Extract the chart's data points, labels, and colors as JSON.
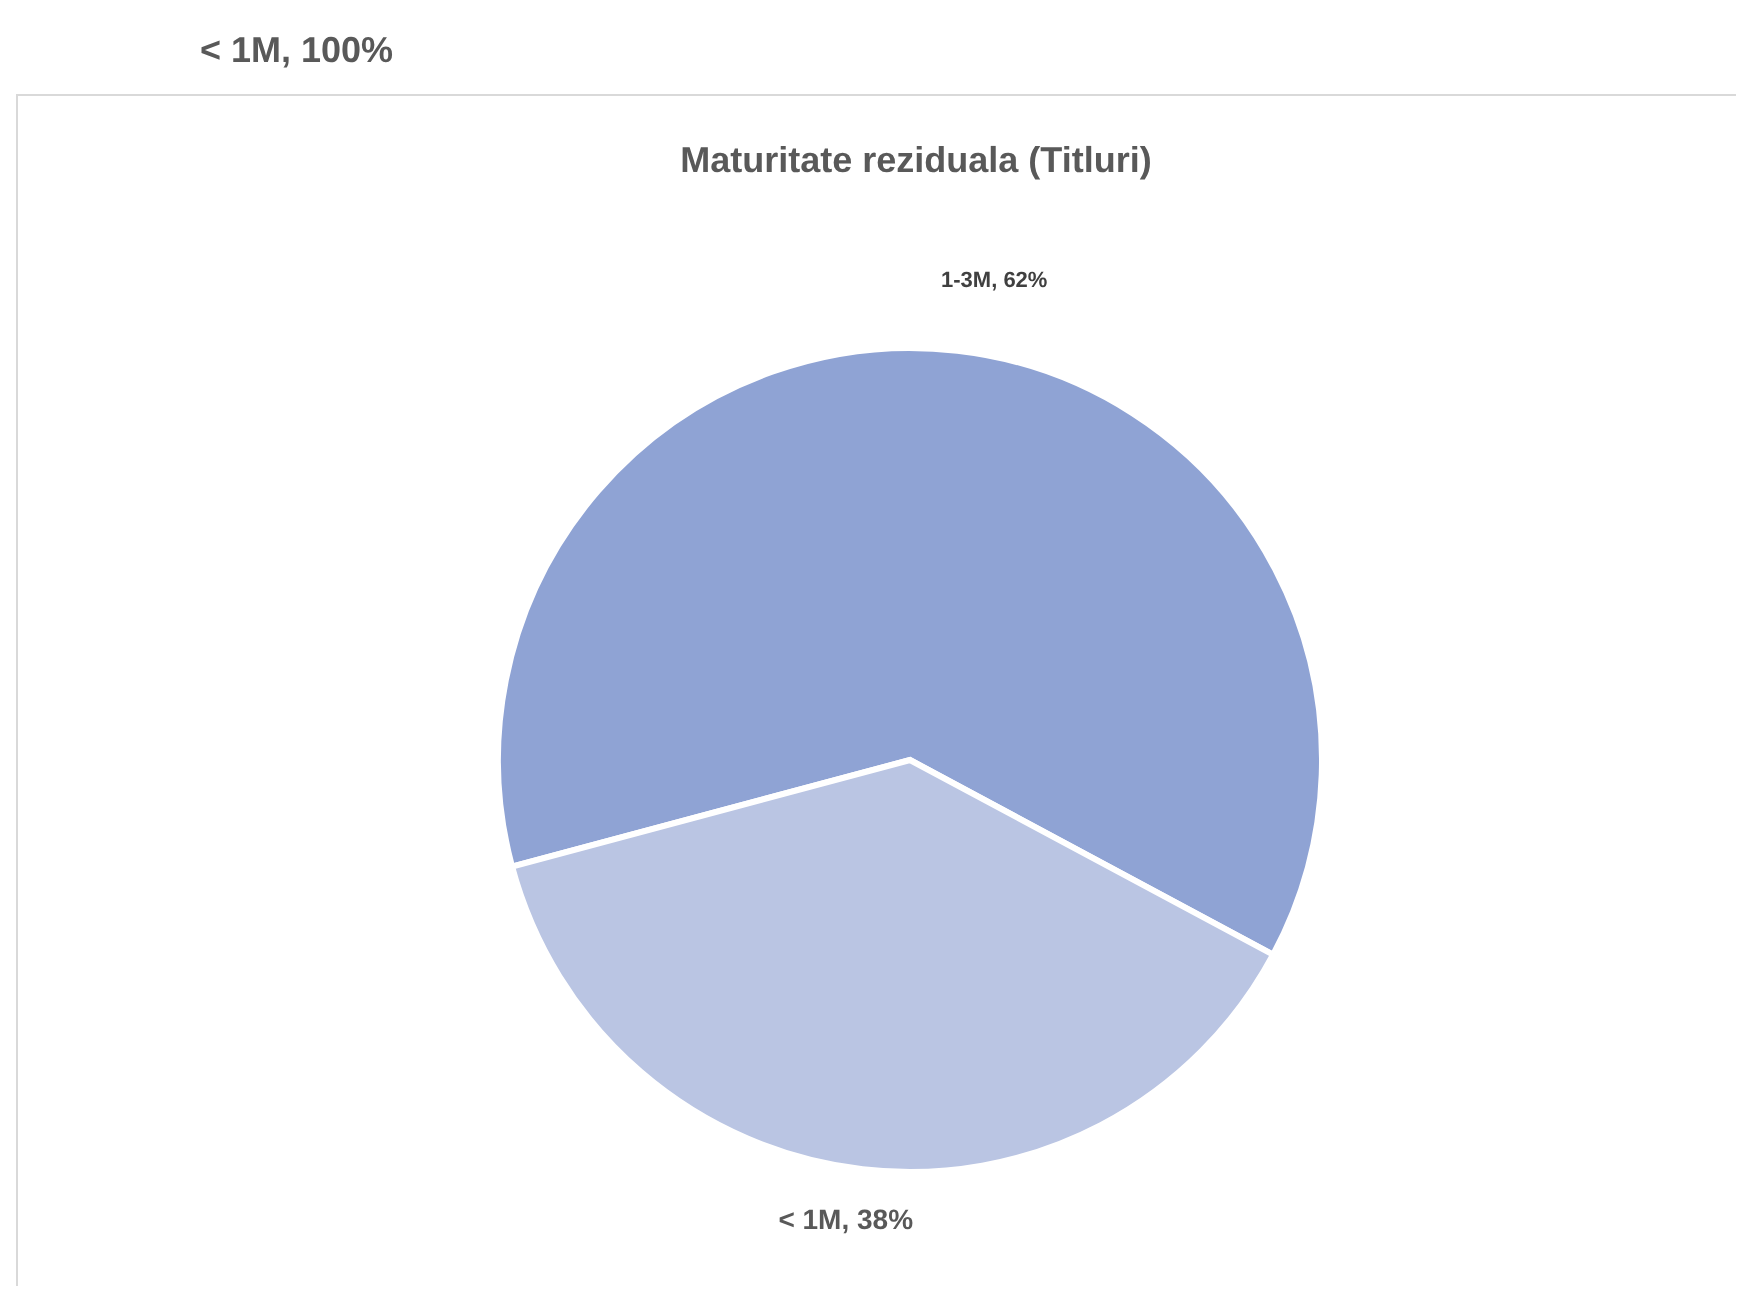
{
  "chart_data": {
    "type": "pie",
    "title": "Maturitate reziduala (Titluri)",
    "categories": [
      "1-3M",
      "< 1M"
    ],
    "values": [
      62,
      38
    ],
    "colors": [
      "#8fa3d4",
      "#bac5e3"
    ],
    "value_labels": [
      ", 62%",
      ", 38%"
    ],
    "annotations": [
      "< 1M, 100%"
    ],
    "legend": false
  }
}
